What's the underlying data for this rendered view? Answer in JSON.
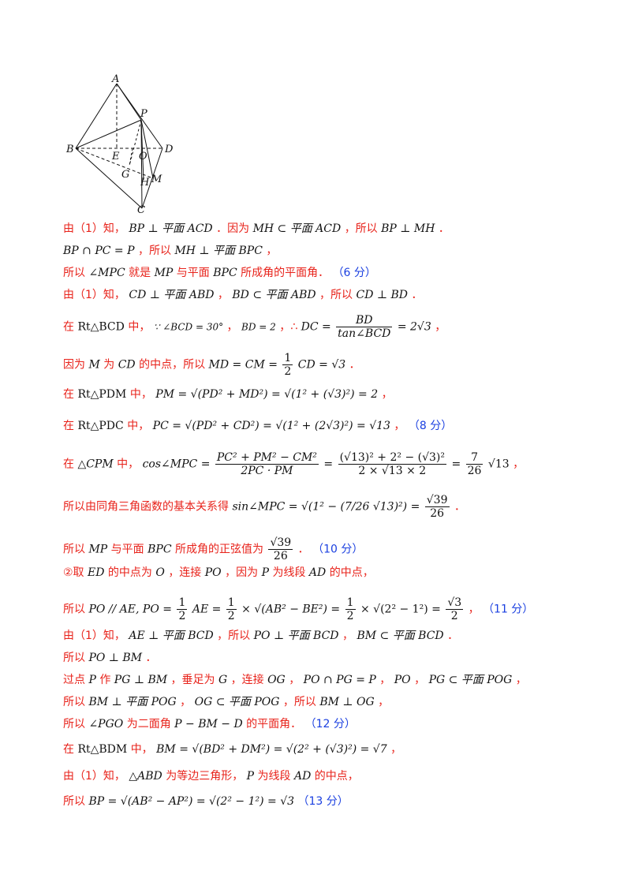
{
  "figure": {
    "labels": {
      "A": "A",
      "P": "P",
      "B": "B",
      "E": "E",
      "O": "O",
      "D": "D",
      "G": "G",
      "H": "H",
      "M": "M",
      "C": "C"
    }
  },
  "lines": {
    "l1": {
      "a": "由（1）知，",
      "b": "BP ⊥ 平面 ACD",
      "c": "．因为",
      "d": "MH ⊂ 平面 ACD",
      "e": "，所以",
      "f": "BP ⊥ MH",
      "g": "．"
    },
    "l2": {
      "a": "BP ∩ PC = P",
      "b": "，所以",
      "c": "MH ⊥ 平面 BPC",
      "d": "，"
    },
    "l3": {
      "a": "所以",
      "b": "∠MPC",
      "c": "就是",
      "d": "MP",
      "e": "与平面",
      "f": "BPC",
      "g": "所成角的平面角．",
      "score": "（6 分）"
    },
    "l4": {
      "a": "由（1）知，",
      "b": "CD ⊥ 平面 ABD",
      "c": "，",
      "d": "BD ⊂ 平面 ABD",
      "e": "，所以",
      "f": "CD ⊥ BD",
      "g": "．"
    },
    "l5": {
      "a": "在",
      "b": "Rt△BCD",
      "c": "中，",
      "d": "∵ ∠BCD = 30°",
      "e": "，",
      "f": "BD = 2",
      "g": "，∴",
      "h": "DC =",
      "num": "BD",
      "den": "tan∠BCD",
      "i": "= 2√3",
      "j": "，"
    },
    "l6": {
      "a": "因为",
      "b": "M",
      "c": "为",
      "d": "CD",
      "e": "的中点，所以",
      "f": "MD = CM =",
      "num": "1",
      "den": "2",
      "g": "CD = √3",
      "h": "．"
    },
    "l7": {
      "a": "在",
      "b": "Rt△PDM",
      "c": "中，",
      "d": "PM = √(PD² + MD²) = √(1² + (√3)²) = 2",
      "e": "，"
    },
    "l8": {
      "a": "在",
      "b": "Rt△PDC",
      "c": "中，",
      "d": "PC = √(PD² + CD²) = √(1² + (2√3)²) = √13",
      "e": "，",
      "score": "（8 分）"
    },
    "l9": {
      "a": "在",
      "b": "△CPM",
      "c": "中，",
      "d": "cos∠MPC =",
      "num1": "PC² + PM² − CM²",
      "den1": "2PC · PM",
      "e": "=",
      "num2": "(√13)² + 2² − (√3)²",
      "den2": "2 × √13 × 2",
      "f": "=",
      "num3": "7",
      "den3": "26",
      "g": "√13",
      "h": "，"
    },
    "l10": {
      "a": "所以由同角三角函数的基本关系得",
      "b": "sin∠MPC = √(1² − (7/26 √13)²) =",
      "num": "√39",
      "den": "26",
      "c": "．"
    },
    "l11": {
      "a": "所以",
      "b": "MP",
      "c": "与平面",
      "d": "BPC",
      "e": "所成角的正弦值为",
      "num": "√39",
      "den": "26",
      "f": "．",
      "score": "（10 分）"
    },
    "l12": {
      "a": "②取",
      "b": "ED",
      "c": "的中点为",
      "d": "O",
      "e": "，连接",
      "f": "PO",
      "g": "，因为",
      "h": "P",
      "i": "为线段",
      "j": "AD",
      "k": "的中点，"
    },
    "l13": {
      "a": "所以",
      "b": "PO // AE, PO =",
      "n1": "1",
      "d1": "2",
      "c": "AE =",
      "n2": "1",
      "d2": "2",
      "d": "× √(AB² − BE²) =",
      "n3": "1",
      "d3": "2",
      "e": "× √(2² − 1²) =",
      "n4": "√3",
      "d4": "2",
      "f": "，",
      "score": "（11 分）"
    },
    "l14": {
      "a": "由（1）知，",
      "b": "AE ⊥ 平面 BCD",
      "c": "，所以",
      "d": "PO ⊥ 平面 BCD",
      "e": "，",
      "f": "BM ⊂ 平面 BCD",
      "g": "．"
    },
    "l15": {
      "a": "所以",
      "b": "PO ⊥ BM",
      "c": "．"
    },
    "l16": {
      "a": "过点",
      "b": "P",
      "c": "作",
      "d": "PG ⊥ BM",
      "e": "，垂足为",
      "f": "G",
      "g": "，连接",
      "h": "OG",
      "i": "，",
      "j": "PO ∩ PG = P",
      "k": "，",
      "l": "PO",
      "m": "，",
      "n": "PG ⊂ 平面 POG",
      "o": "，"
    },
    "l17": {
      "a": "所以",
      "b": "BM ⊥ 平面 POG",
      "c": "，",
      "d": "OG ⊂ 平面 POG",
      "e": "，所以",
      "f": "BM ⊥ OG",
      "g": "，"
    },
    "l18": {
      "a": "所以",
      "b": "∠PGO",
      "c": "为二面角",
      "d": "P − BM − D",
      "e": "的平面角．",
      "score": "（12 分）"
    },
    "l19": {
      "a": "在",
      "b": "Rt△BDM",
      "c": "中，",
      "d": "BM = √(BD² + DM²) = √(2² + (√3)²) = √7",
      "e": "，"
    },
    "l20": {
      "a": "由（1）知，",
      "b": "△ABD",
      "c": "为等边三角形，",
      "d": "P",
      "e": "为线段",
      "f": "AD",
      "g": "的中点，"
    },
    "l21": {
      "a": "所以",
      "b": "BP = √(AB² − AP²) = √(2² − 1²) = √3",
      "score": "（13 分）"
    }
  }
}
